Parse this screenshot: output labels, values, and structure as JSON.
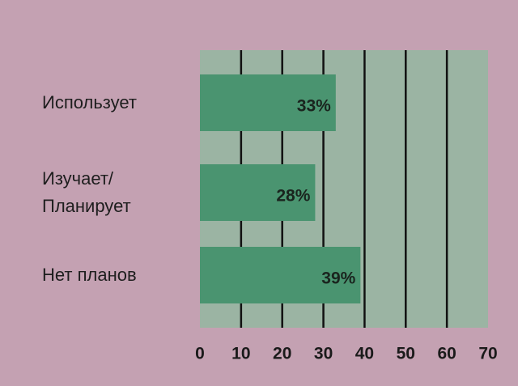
{
  "chart_data": {
    "type": "barh",
    "categories": [
      "Использует",
      "Изучает/\nПланирует",
      "Нет планов"
    ],
    "values": [
      33,
      28,
      39
    ],
    "value_labels": [
      "33%",
      "28%",
      "39%"
    ],
    "color": "#4a9470",
    "xlim": [
      0,
      70
    ],
    "xticks": [
      0,
      10,
      20,
      30,
      40,
      50,
      60,
      70
    ],
    "grid": true
  }
}
